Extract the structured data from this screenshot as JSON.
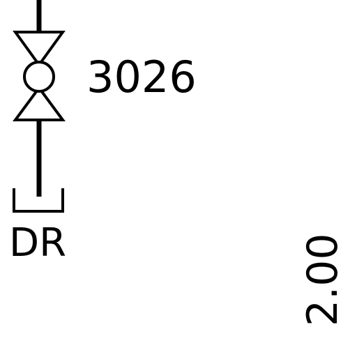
{
  "diagram": {
    "valve_tag": "3026",
    "drain_label": "DR",
    "dimension": "2.00",
    "line_color": "#000000",
    "background_color": "#ffffff"
  }
}
